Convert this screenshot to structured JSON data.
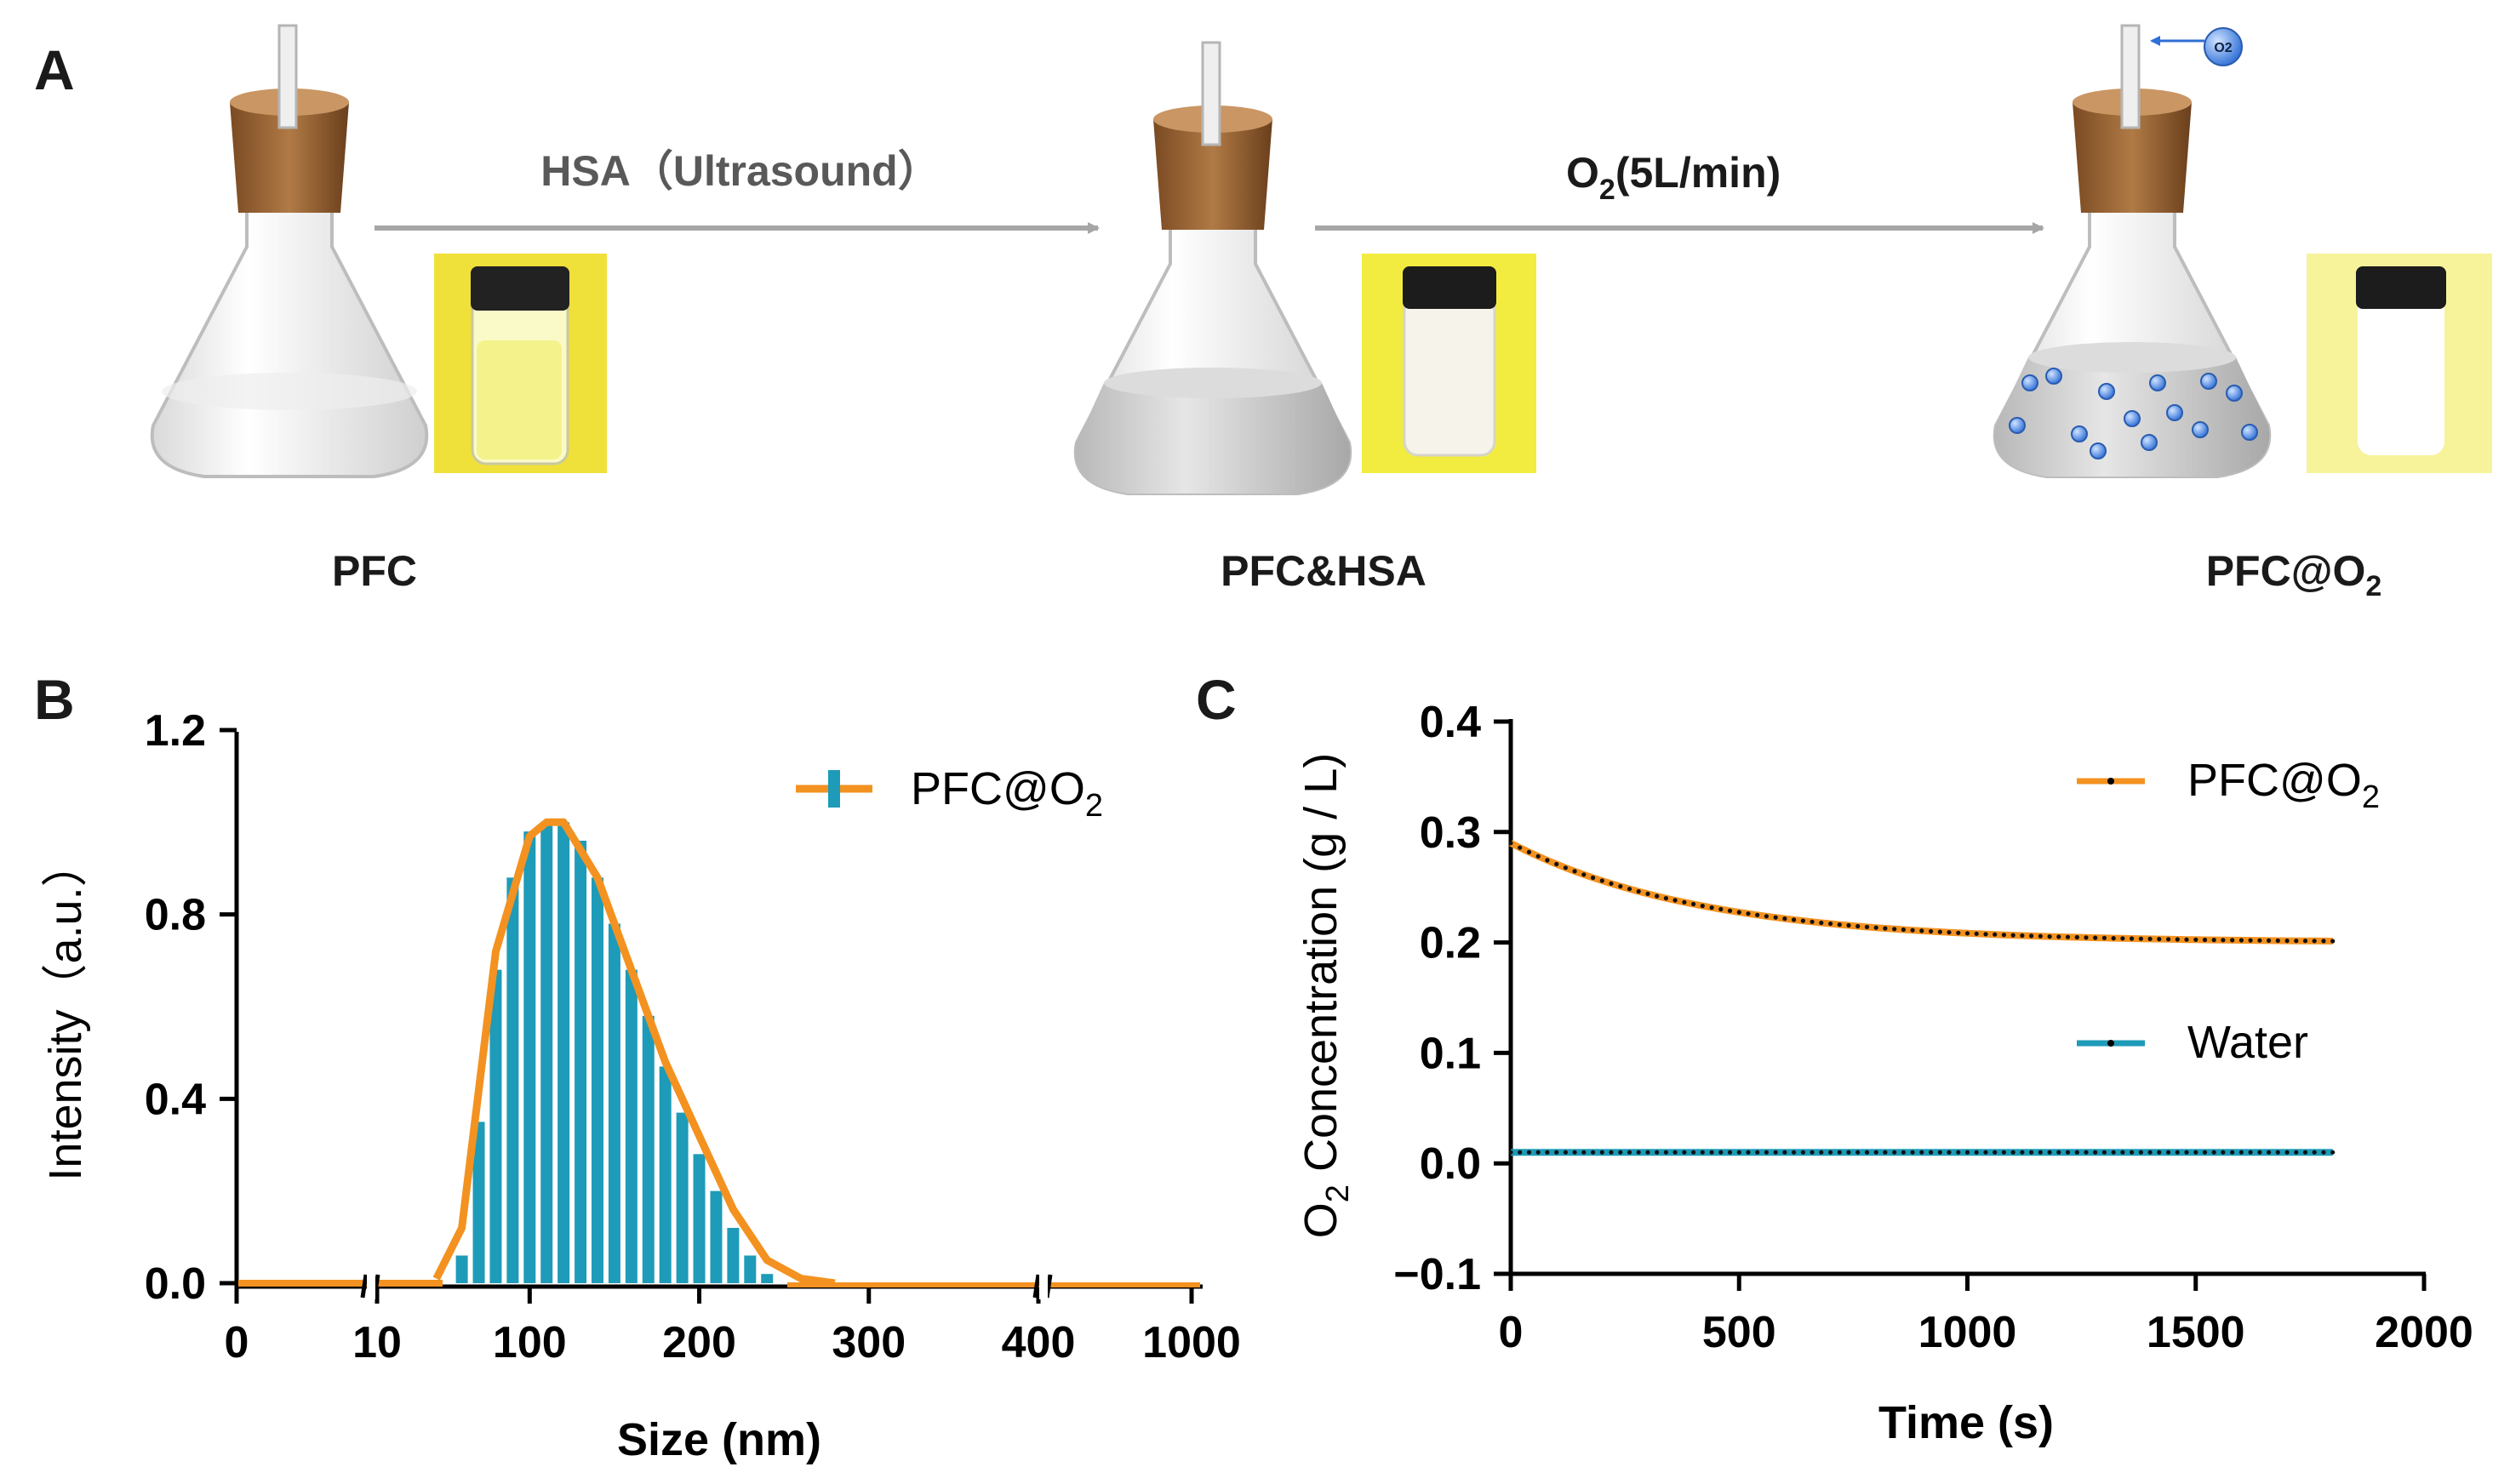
{
  "panel_a": {
    "letter": "A",
    "steps": [
      {
        "label": "PFC",
        "vial_color": "#f0e03a"
      },
      {
        "label": "PFC&HSA",
        "vial_color": "#f2ec40"
      },
      {
        "label_main": "PFC@O",
        "label_sub": "2",
        "vial_color": "#f7f39a"
      }
    ],
    "arrow1": "HSA（Ultrasound）",
    "arrow2_main": "O",
    "arrow2_sub": "2",
    "arrow2_rest": "(5L/min)",
    "bubble": "O2"
  },
  "chart_data": [
    {
      "panel": "B",
      "type": "bar",
      "xlabel": "Size (nm)",
      "ylabel": "Intensity（a.u.）",
      "yticks": [
        "0.0",
        "0.4",
        "0.8",
        "1.2"
      ],
      "ylim": [
        0,
        1.2
      ],
      "xticks": [
        "0",
        "10",
        "100",
        "200",
        "300",
        "400",
        "1000"
      ],
      "legend": {
        "main": "PFC@O",
        "sub": "2"
      },
      "colors": {
        "bars": "#1e9bb8",
        "line": "#f39220"
      },
      "bar_x_nm": [
        60,
        70,
        80,
        90,
        100,
        110,
        120,
        130,
        140,
        150,
        160,
        170,
        180,
        190,
        200,
        210,
        220,
        230,
        240
      ],
      "values": [
        0.06,
        0.35,
        0.68,
        0.88,
        0.98,
        1.0,
        1.0,
        0.96,
        0.88,
        0.78,
        0.68,
        0.58,
        0.47,
        0.37,
        0.28,
        0.2,
        0.12,
        0.06,
        0.02
      ],
      "line_x_nm": [
        45,
        60,
        80,
        100,
        110,
        120,
        140,
        160,
        180,
        200,
        220,
        240,
        260,
        280
      ],
      "line_y": [
        0.01,
        0.12,
        0.72,
        0.97,
        1.0,
        1.0,
        0.88,
        0.68,
        0.48,
        0.32,
        0.16,
        0.05,
        0.01,
        0.0
      ]
    },
    {
      "panel": "C",
      "type": "line",
      "xlabel": "Time (s)",
      "ylabel_main": "O",
      "ylabel_sub": "2",
      "ylabel_rest": " Concentration (g / L)",
      "xlim": [
        0,
        2000
      ],
      "ylim": [
        -0.1,
        0.4
      ],
      "xticks": [
        "0",
        "500",
        "1000",
        "1500",
        "2000"
      ],
      "yticks": [
        "−0.1",
        "0.0",
        "0.1",
        "0.2",
        "0.3",
        "0.4"
      ],
      "series": [
        {
          "name_main": "PFC@O",
          "name_sub": "2",
          "color": "#f39220",
          "start": 0.29,
          "end": 0.2,
          "tau": 420
        },
        {
          "name_main": "Water",
          "name_sub": "",
          "color": "#1e9bb8",
          "start": 0.01,
          "end": 0.01,
          "tau": 1
        }
      ],
      "t_max": 1800,
      "t_step": 20
    }
  ]
}
